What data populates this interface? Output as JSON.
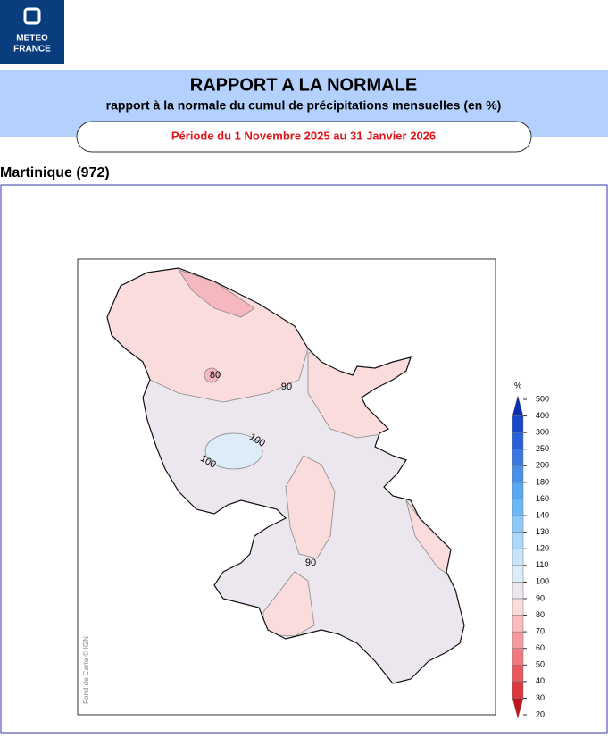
{
  "header": {
    "logo": [
      "METEO",
      "FRANCE"
    ],
    "title": "RAPPORT A LA NORMALE",
    "subtitle": "rapport à la normale du cumul de précipitations mensuelles (en %)",
    "period": "Période du 1 Novembre 2025 au 31 Janvier 2026"
  },
  "region": "Martinique (972)",
  "map": {
    "contour_labels": [
      80,
      90,
      100,
      100,
      90
    ],
    "credit": "Fond de Carte © IGN",
    "colorbar": {
      "unit": "%",
      "levels": [
        20,
        30,
        40,
        50,
        60,
        70,
        80,
        90,
        100,
        110,
        120,
        130,
        140,
        160,
        180,
        200,
        250,
        300,
        400,
        500
      ],
      "colors": [
        "#c0141c",
        "#d83a40",
        "#e85a60",
        "#ef7b80",
        "#f49aa0",
        "#f8bcc0",
        "#fadcdc",
        "#ece6ee",
        "#dcecf8",
        "#c8e4f8",
        "#aad8f8",
        "#8ccaf8",
        "#6cb8f6",
        "#58a8f0",
        "#4890e8",
        "#3878e0",
        "#2860d8",
        "#1848c8",
        "#0c2eb0"
      ]
    }
  }
}
